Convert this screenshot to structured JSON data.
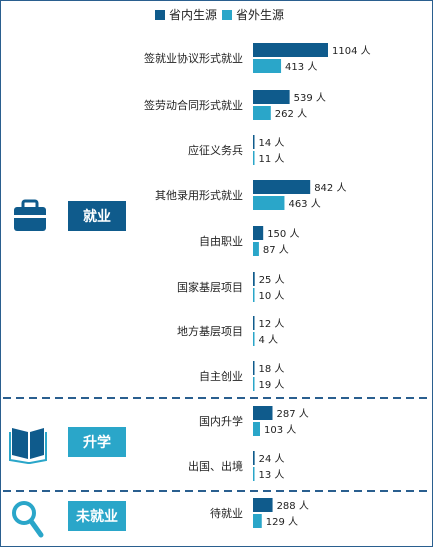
{
  "legend": [
    {
      "name": "省内生源",
      "color": "#0f5b8c"
    },
    {
      "name": "省外生源",
      "color": "#2aa6c9"
    }
  ],
  "chart_data": {
    "type": "bar",
    "orientation": "horizontal",
    "value_unit": "人",
    "series": [
      {
        "name": "省内生源",
        "color": "#0f5b8c",
        "values": [
          1104,
          539,
          14,
          842,
          150,
          25,
          12,
          18,
          287,
          24,
          288
        ]
      },
      {
        "name": "省外生源",
        "color": "#2aa6c9",
        "values": [
          413,
          262,
          11,
          463,
          87,
          10,
          4,
          19,
          103,
          13,
          129
        ]
      }
    ],
    "categories": [
      "签就业协议形式就业",
      "签劳动合同形式就业",
      "应征义务兵",
      "其他录用形式就业",
      "自由职业",
      "国家基层项目",
      "地方基层项目",
      "自主创业",
      "国内升学",
      "出国、出境",
      "待就业"
    ],
    "groups": [
      {
        "label": "就业",
        "icon": "briefcase-icon",
        "categories": [
          "签就业协议形式就业",
          "签劳动合同形式就业",
          "应征义务兵",
          "其他录用形式就业",
          "自由职业",
          "国家基层项目",
          "地方基层项目",
          "自主创业"
        ]
      },
      {
        "label": "升学",
        "icon": "book-icon",
        "categories": [
          "国内升学",
          "出国、出境"
        ]
      },
      {
        "label": "未就业",
        "icon": "magnifier-icon",
        "categories": [
          "待就业"
        ]
      }
    ],
    "xlim": [
      0,
      1104
    ]
  }
}
